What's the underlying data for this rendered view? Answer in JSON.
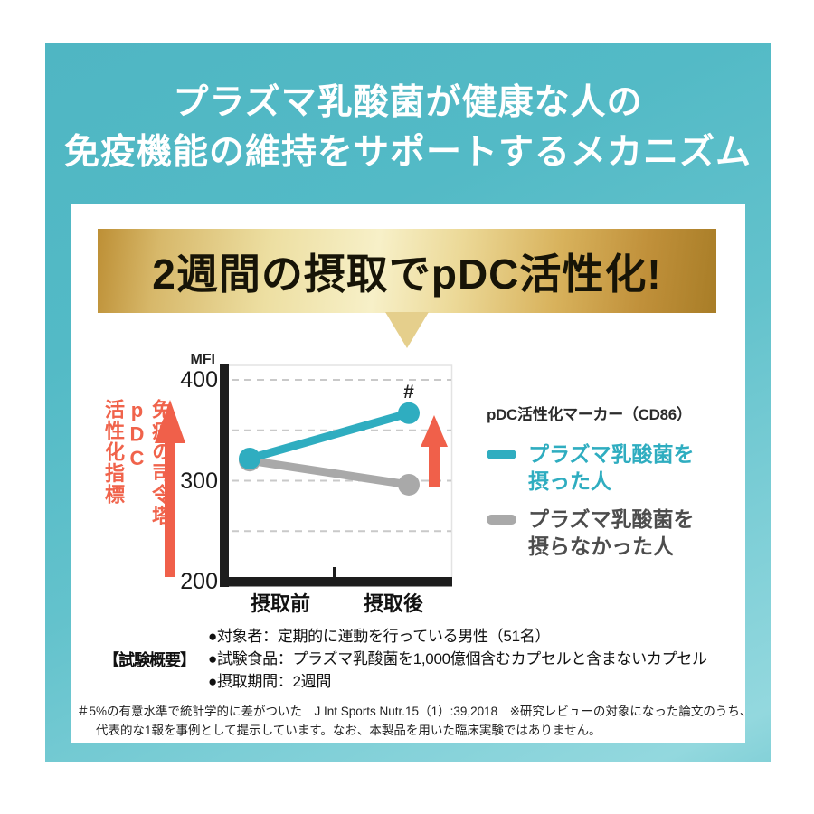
{
  "header": {
    "title_line1": "プラズマ乳酸菌が健康な人の",
    "title_line2": "免疫機能の維持をサポートするメカニズム"
  },
  "banner": {
    "text": "2週間の摂取でpDC活性化!"
  },
  "chart_data": {
    "type": "line",
    "title": "pDC活性化マーカー（CD86）",
    "unit_label": "MFI",
    "categories": [
      "摂取前",
      "摂取後"
    ],
    "y_ticks": [
      400,
      300,
      200
    ],
    "ylim": [
      200,
      400
    ],
    "gridlines": [
      400,
      350,
      300,
      250
    ],
    "grid": "dashed-horizontal",
    "legend_position": "right",
    "series": [
      {
        "name": "プラズマ乳酸菌を摂った人",
        "color": "#2fadc0",
        "values": [
          322,
          367
        ],
        "annotation": "#"
      },
      {
        "name": "プラズマ乳酸菌を摂らなかった人",
        "color": "#a9a9a9",
        "values": [
          320,
          296
        ],
        "annotation": ""
      }
    ],
    "side_label": {
      "column1": "免疫の司令塔pDC",
      "column2": "活性化指標"
    }
  },
  "legend": {
    "title": "pDC活性化マーカー（CD86）",
    "items": [
      {
        "line1": "プラズマ乳酸菌を",
        "line2": "摂った人",
        "color": "#2fadc0"
      },
      {
        "line1": "プラズマ乳酸菌を",
        "line2": "摂らなかった人",
        "color": "#4d4d4d",
        "swatch_color": "#a9a9a9"
      }
    ]
  },
  "overview": {
    "label": "【試験概要】",
    "items": [
      "●対象者：定期的に運動を行っている男性（51名）",
      "●試験食品：プラズマ乳酸菌を1,000億個含むカプセルと含まないカプセル",
      "●摂取期間：2週間"
    ]
  },
  "footnote": {
    "line1": "＃5%の有意水準で統計学的に差がついた　J Int Sports Nutr.15（1）:39,2018　※研究レビューの対象になった論文のうち、",
    "line2": "代表的な1報を事例として提示しています。なお、本製品を用いた臨床実験ではありません。"
  },
  "colors": {
    "teal_accent": "#2fadc0",
    "gray_series": "#a9a9a9",
    "accent_red": "#f0604a",
    "gold_dark": "#b98c30",
    "gold_light": "#f7f0c8",
    "background_teal": "#5bbfca"
  }
}
